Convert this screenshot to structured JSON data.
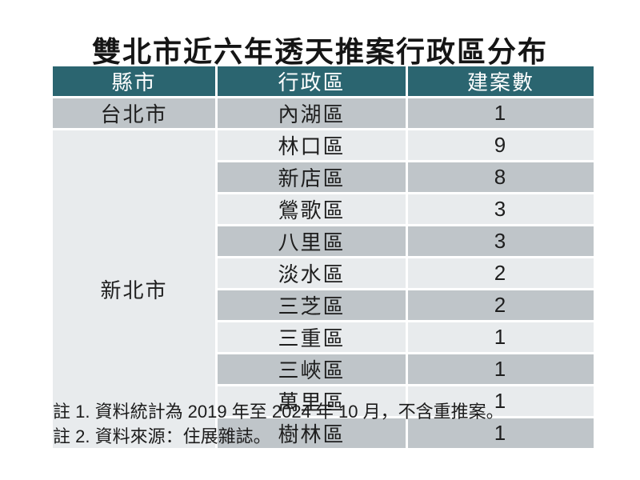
{
  "title": "雙北市近六年透天推案行政區分布",
  "chart_data": {
    "type": "table",
    "title": "雙北市近六年透天推案行政區分布",
    "columns": [
      "縣市",
      "行政區",
      "建案數"
    ],
    "groups": [
      {
        "city": "台北市",
        "districts": [
          {
            "name": "內湖區",
            "count": 1
          }
        ]
      },
      {
        "city": "新北市",
        "districts": [
          {
            "name": "林口區",
            "count": 9
          },
          {
            "name": "新店區",
            "count": 8
          },
          {
            "name": "鶯歌區",
            "count": 3
          },
          {
            "name": "八里區",
            "count": 3
          },
          {
            "name": "淡水區",
            "count": 2
          },
          {
            "name": "三芝區",
            "count": 2
          },
          {
            "name": "三重區",
            "count": 1
          },
          {
            "name": "三峽區",
            "count": 1
          },
          {
            "name": "萬里區",
            "count": 1
          },
          {
            "name": "樹林區",
            "count": 1
          }
        ]
      }
    ],
    "notes": [
      "註 1. 資料統計為 2019 年至 2024 年 10 月，不含重推案。",
      "註 2. 資料來源：住展雜誌。"
    ]
  },
  "colors": {
    "header_bg": "#2b6570",
    "header_text": "#ffffff",
    "row_gray": "#bfc5c9",
    "row_light": "#e8ebed",
    "merged_cell_bg": "#e7eaec",
    "body_text": "#1e1e1e",
    "grid_gap": "#ffffff"
  }
}
